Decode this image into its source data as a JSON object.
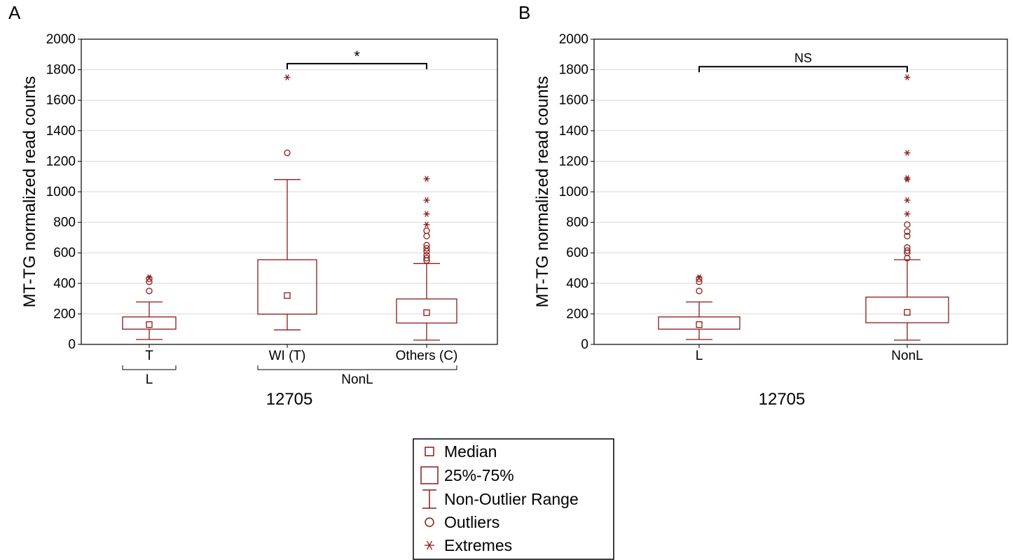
{
  "colors": {
    "box": "#8b1a1a",
    "grid": "#d9d9d9",
    "axis": "#000000"
  },
  "legend": {
    "items": [
      {
        "icon": "median-square-icon",
        "label": "Median"
      },
      {
        "icon": "iqr-box-icon",
        "label": "25%-75%"
      },
      {
        "icon": "whisker-icon",
        "label": "Non-Outlier Range"
      },
      {
        "icon": "outlier-circle-icon",
        "label": "Outliers"
      },
      {
        "icon": "extreme-asterisk-icon",
        "label": "Extremes"
      }
    ]
  },
  "chart_data": [
    {
      "panel": "A",
      "type": "box",
      "ylabel": "MT-TG normalized read counts",
      "xlabel": "12705",
      "ylim": [
        0,
        2000
      ],
      "yticks": [
        0,
        200,
        400,
        600,
        800,
        1000,
        1200,
        1400,
        1600,
        1800,
        2000
      ],
      "grid": true,
      "categories": [
        "T",
        "WI (T)",
        "Others (C)"
      ],
      "groups": [
        {
          "label": "L",
          "categories": [
            "T"
          ]
        },
        {
          "label": "NonL",
          "categories": [
            "WI (T)",
            "Others (C)"
          ]
        }
      ],
      "boxes": [
        {
          "category": "T",
          "median": 130,
          "q1": 100,
          "q3": 180,
          "whisker_low": 32,
          "whisker_high": 278,
          "outliers": [
            350,
            410,
            430
          ],
          "extremes": [
            440
          ]
        },
        {
          "category": "WI (T)",
          "median": 320,
          "q1": 198,
          "q3": 555,
          "whisker_low": 95,
          "whisker_high": 1080,
          "outliers": [
            1255
          ],
          "extremes": [
            1750
          ]
        },
        {
          "category": "Others (C)",
          "median": 208,
          "q1": 140,
          "q3": 298,
          "whisker_low": 28,
          "whisker_high": 530,
          "outliers": [
            550,
            565,
            585,
            610,
            630,
            650,
            710,
            745
          ],
          "extremes": [
            785,
            855,
            945,
            1085
          ]
        }
      ],
      "significance": {
        "from": "WI (T)",
        "to": "Others (C)",
        "label": "*",
        "y": 1840
      }
    },
    {
      "panel": "B",
      "type": "box",
      "ylabel": "MT-TG normalized read counts",
      "xlabel": "12705",
      "ylim": [
        0,
        2000
      ],
      "yticks": [
        0,
        200,
        400,
        600,
        800,
        1000,
        1200,
        1400,
        1600,
        1800,
        2000
      ],
      "grid": true,
      "categories": [
        "L",
        "NonL"
      ],
      "groups": [],
      "boxes": [
        {
          "category": "L",
          "median": 130,
          "q1": 100,
          "q3": 180,
          "whisker_low": 32,
          "whisker_high": 278,
          "outliers": [
            350,
            410,
            430
          ],
          "extremes": [
            440
          ]
        },
        {
          "category": "NonL",
          "median": 210,
          "q1": 142,
          "q3": 310,
          "whisker_low": 28,
          "whisker_high": 555,
          "outliers": [
            565,
            600,
            615,
            635,
            710,
            740,
            785
          ],
          "extremes": [
            855,
            945,
            1080,
            1090,
            1255,
            1750
          ]
        }
      ],
      "significance": {
        "from": "L",
        "to": "NonL",
        "label": "NS",
        "y": 1820
      }
    }
  ]
}
